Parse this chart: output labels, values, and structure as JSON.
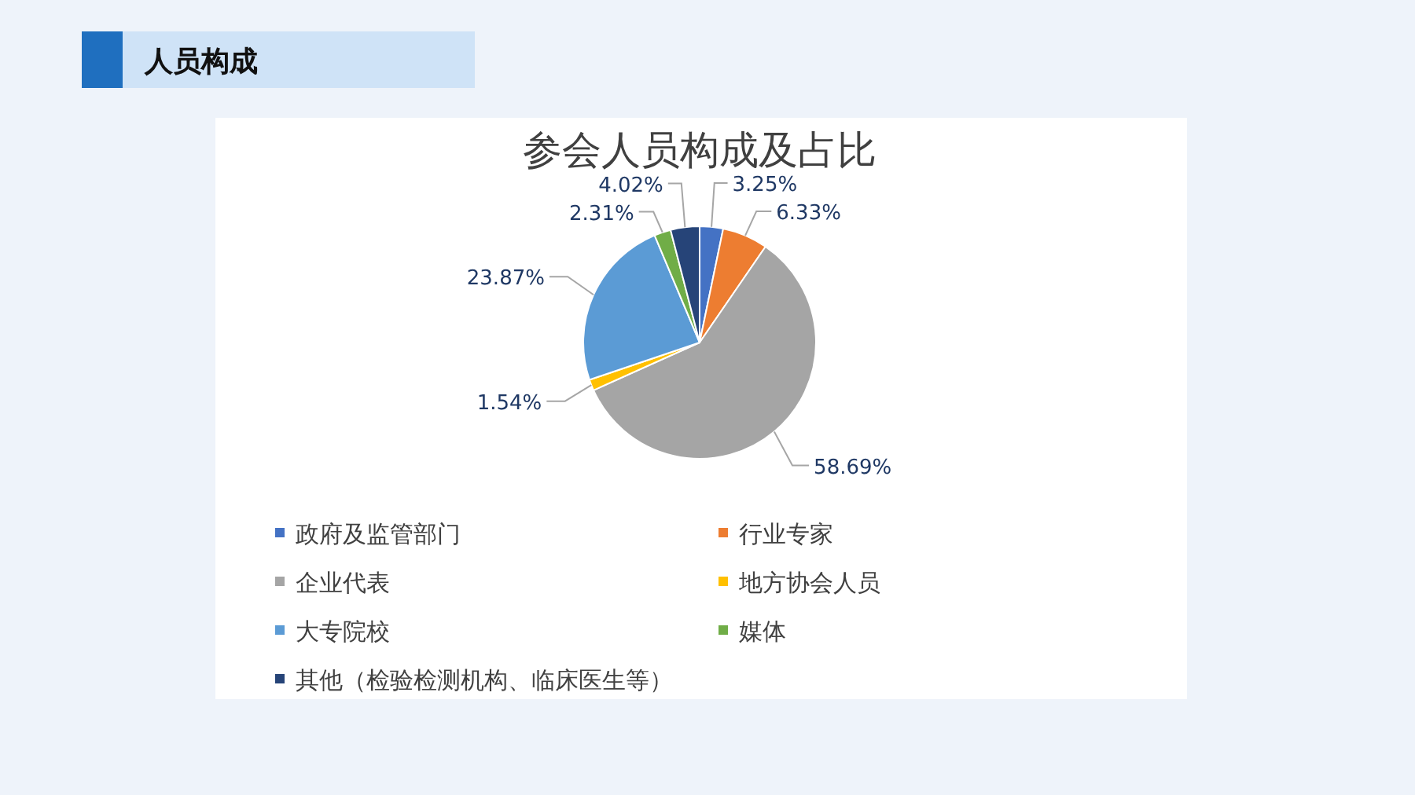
{
  "chart_data": {
    "type": "pie",
    "title": "参会人员构成及占比",
    "annotations": [
      "人员构成"
    ],
    "categories": [
      "政府及监管部门",
      "行业专家",
      "企业代表",
      "地方协会人员",
      "大专院校",
      "媒体",
      "其他（检验检测机构、临床医生等）"
    ],
    "values": [
      3.25,
      6.33,
      58.69,
      1.54,
      23.87,
      2.31,
      4.02
    ],
    "colors": [
      "#4472c4",
      "#ed7d31",
      "#a5a5a5",
      "#ffc000",
      "#5b9bd5",
      "#70ad47",
      "#264478"
    ],
    "value_labels": [
      "3.25%",
      "6.33%",
      "58.69%",
      "1.54%",
      "23.87%",
      "2.31%",
      "4.02%"
    ],
    "legend": "bottom"
  }
}
